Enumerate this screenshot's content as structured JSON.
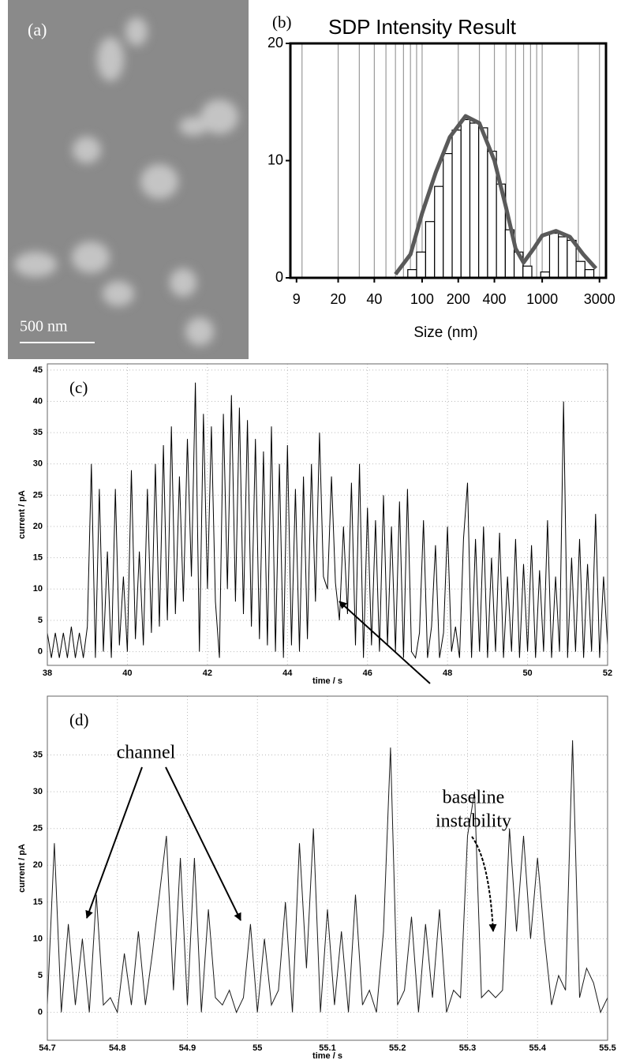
{
  "panel_a": {
    "label": "(a)",
    "scale_bar": "500 nm"
  },
  "annotations": [
    "channel",
    "baseline",
    "instability"
  ],
  "chart_data": [
    {
      "type": "histogram",
      "label": "(b)",
      "title": "SDP Intensity Result",
      "xlabel": "Size (nm)",
      "xscale": "log",
      "xlim": [
        8,
        3400
      ],
      "ylim": [
        0,
        20
      ],
      "xticks": [
        9,
        20,
        40,
        100,
        200,
        400,
        1000,
        3000
      ],
      "yticks": [
        0,
        10,
        20
      ],
      "xgrid": [
        10,
        20,
        30,
        40,
        50,
        60,
        70,
        80,
        90,
        100,
        200,
        300,
        400,
        500,
        600,
        700,
        800,
        900,
        1000,
        2000,
        3000
      ],
      "bins": [
        76,
        90,
        107,
        127,
        150,
        178,
        211,
        250,
        296,
        351,
        416,
        493,
        584,
        692,
        820,
        972,
        1152,
        1365,
        1617,
        1917,
        2271,
        2692
      ],
      "counts": [
        0.7,
        2.2,
        4.8,
        7.8,
        10.6,
        12.6,
        13.5,
        13.2,
        12.8,
        10.8,
        8,
        4.1,
        2.2,
        1,
        0,
        0.5,
        3.8,
        3.5,
        3.2,
        1.4,
        0.7
      ],
      "color": "#ffffff",
      "curve": {
        "color": "#5a5a5a",
        "x": [
          60,
          80,
          100,
          130,
          170,
          230,
          300,
          400,
          500,
          600,
          700,
          850,
          1000,
          1300,
          1700,
          2200,
          2800
        ],
        "values": [
          0.3,
          2,
          5.5,
          9,
          12,
          13.8,
          13.2,
          10,
          6,
          2.5,
          1.3,
          2.5,
          3.6,
          4,
          3.5,
          2,
          0.8
        ]
      }
    },
    {
      "type": "line",
      "label": "(c)",
      "xlabel": "time / s",
      "ylabel": "current / pA",
      "color": "#000000",
      "grid": true,
      "xlim": [
        38,
        52
      ],
      "ylim": [
        -2.2,
        46
      ],
      "xticks": [
        38,
        40,
        42,
        44,
        46,
        48,
        50,
        52
      ],
      "yticks": [
        0,
        5,
        10,
        15,
        20,
        25,
        30,
        35,
        40,
        45
      ],
      "x": [
        38,
        38.1,
        38.2,
        38.3,
        38.4,
        38.5,
        38.6,
        38.7,
        38.8,
        38.9,
        39,
        39.1,
        39.2,
        39.3,
        39.4,
        39.5,
        39.6,
        39.7,
        39.8,
        39.9,
        40,
        40.1,
        40.2,
        40.3,
        40.4,
        40.5,
        40.6,
        40.7,
        40.8,
        40.9,
        41,
        41.1,
        41.2,
        41.3,
        41.4,
        41.5,
        41.6,
        41.7,
        41.8,
        41.9,
        42,
        42.1,
        42.2,
        42.3,
        42.4,
        42.5,
        42.6,
        42.7,
        42.8,
        42.9,
        43,
        43.1,
        43.2,
        43.3,
        43.4,
        43.5,
        43.6,
        43.7,
        43.8,
        43.9,
        44,
        44.1,
        44.2,
        44.3,
        44.4,
        44.5,
        44.6,
        44.7,
        44.8,
        44.9,
        45,
        45.1,
        45.2,
        45.3,
        45.4,
        45.5,
        45.6,
        45.7,
        45.8,
        45.9,
        46,
        46.1,
        46.2,
        46.3,
        46.4,
        46.5,
        46.6,
        46.7,
        46.8,
        46.9,
        47,
        47.1,
        47.2,
        47.3,
        47.4,
        47.5,
        47.6,
        47.7,
        47.8,
        47.9,
        48,
        48.1,
        48.2,
        48.3,
        48.4,
        48.5,
        48.6,
        48.7,
        48.8,
        48.9,
        49,
        49.1,
        49.2,
        49.3,
        49.4,
        49.5,
        49.6,
        49.7,
        49.8,
        49.9,
        50,
        50.1,
        50.2,
        50.3,
        50.4,
        50.5,
        50.6,
        50.7,
        50.8,
        50.9,
        51,
        51.1,
        51.2,
        51.3,
        51.4,
        51.5,
        51.6,
        51.7,
        51.8,
        51.9,
        52
      ],
      "values": [
        3,
        -1,
        3,
        -1,
        3,
        -1,
        4,
        -1,
        3,
        -1,
        4,
        30,
        -1,
        26,
        0,
        16,
        -1,
        26,
        1,
        12,
        0,
        29,
        2,
        16,
        1,
        26,
        3,
        30,
        4,
        33,
        5,
        36,
        6,
        28,
        8,
        34,
        12,
        43,
        0,
        38,
        10,
        36,
        8,
        -1,
        38,
        10,
        41,
        8,
        39,
        6,
        37,
        4,
        34,
        2,
        32,
        1,
        36,
        0,
        30,
        -1,
        33,
        1,
        26,
        0,
        28,
        2,
        30,
        8,
        35,
        12,
        10,
        28,
        11,
        5,
        20,
        6,
        27,
        1,
        30,
        -1,
        23,
        1,
        21,
        0,
        25,
        1,
        20,
        0,
        24,
        -1,
        26,
        0,
        -1,
        3,
        21,
        -1,
        4,
        17,
        -1,
        3,
        20,
        0,
        4,
        -1,
        18,
        27,
        -1,
        18,
        0,
        20,
        -1,
        15,
        0,
        19,
        -1,
        12,
        0,
        18,
        -1,
        14,
        0,
        17,
        -1,
        13,
        0,
        21,
        -1,
        12,
        0,
        40,
        -1,
        15,
        0,
        18,
        -1,
        14,
        0,
        22,
        -1,
        12,
        1
      ]
    },
    {
      "type": "line",
      "label": "(d)",
      "xlabel": "time / s",
      "ylabel": "current / pA",
      "color": "#1a1a1a",
      "grid": true,
      "xlim": [
        54.7,
        55.5
      ],
      "ylim": [
        -3.8,
        43
      ],
      "xticks": [
        54.7,
        54.8,
        54.9,
        55,
        55.1,
        55.2,
        55.3,
        55.4,
        55.5
      ],
      "yticks": [
        0,
        5,
        10,
        15,
        20,
        25,
        30,
        35
      ],
      "x": [
        54.7,
        54.71,
        54.72,
        54.73,
        54.74,
        54.75,
        54.76,
        54.77,
        54.78,
        54.79,
        54.8,
        54.81,
        54.82,
        54.83,
        54.84,
        54.85,
        54.86,
        54.87,
        54.88,
        54.89,
        54.9,
        54.91,
        54.92,
        54.93,
        54.94,
        54.95,
        54.96,
        54.97,
        54.98,
        54.99,
        55,
        55.01,
        55.02,
        55.03,
        55.04,
        55.05,
        55.06,
        55.07,
        55.08,
        55.09,
        55.1,
        55.11,
        55.12,
        55.13,
        55.14,
        55.15,
        55.16,
        55.17,
        55.18,
        55.19,
        55.2,
        55.21,
        55.22,
        55.23,
        55.24,
        55.25,
        55.26,
        55.27,
        55.28,
        55.29,
        55.3,
        55.31,
        55.32,
        55.33,
        55.34,
        55.35,
        55.36,
        55.37,
        55.38,
        55.39,
        55.4,
        55.41,
        55.42,
        55.43,
        55.44,
        55.45,
        55.46,
        55.47,
        55.48,
        55.49,
        55.5
      ],
      "values": [
        1,
        23,
        0,
        12,
        1,
        10,
        0,
        16,
        1,
        2,
        0,
        8,
        1,
        11,
        1,
        8,
        16,
        24,
        3,
        21,
        1,
        21,
        0,
        14,
        2,
        1,
        3,
        0,
        2,
        12,
        0,
        10,
        1,
        3,
        15,
        0,
        23,
        6,
        25,
        0,
        14,
        1,
        11,
        0,
        16,
        1,
        3,
        0,
        11,
        36,
        1,
        3,
        13,
        0,
        12,
        2,
        14,
        0,
        3,
        2,
        24,
        30,
        2,
        3,
        2,
        3,
        25,
        11,
        24,
        10,
        21,
        10,
        1,
        5,
        3,
        37,
        2,
        6,
        4,
        0,
        2
      ]
    }
  ]
}
